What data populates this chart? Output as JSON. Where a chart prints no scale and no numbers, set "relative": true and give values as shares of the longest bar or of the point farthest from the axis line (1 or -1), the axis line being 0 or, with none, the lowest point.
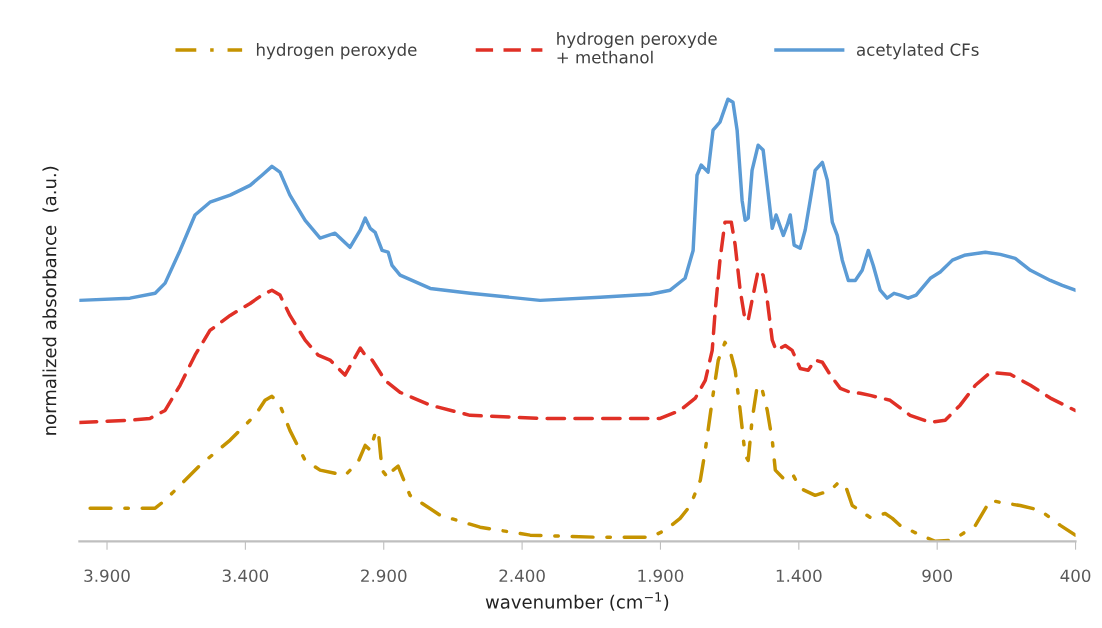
{
  "chart_data": {
    "type": "line",
    "relative": true,
    "xlabel": "wavenumber (cm$^{−1}$)",
    "ylabel": "normalized absorbance  (a.u.)",
    "xlim": [
      4000,
      400
    ],
    "xticks": [
      {
        "value": 3900,
        "label": "3.900"
      },
      {
        "value": 3400,
        "label": "3.400"
      },
      {
        "value": 2900,
        "label": "2.900"
      },
      {
        "value": 2400,
        "label": "2.400"
      },
      {
        "value": 1900,
        "label": "1.900"
      },
      {
        "value": 1400,
        "label": "1.400"
      },
      {
        "value": 900,
        "label": "900"
      },
      {
        "value": 400,
        "label": "400"
      }
    ],
    "tick_labels": "x",
    "grid": false,
    "legend": "top",
    "series": [
      {
        "name": "hydrogen peroxyde",
        "color": "#c59300",
        "line_style": "dashdot",
        "x": [
          3961,
          3817,
          3726,
          3690,
          3618,
          3564,
          3455,
          3365,
          3329,
          3304,
          3275,
          3239,
          3184,
          3130,
          3040,
          2993,
          2967,
          2949,
          2931,
          2920,
          2906,
          2884,
          2866,
          2848,
          2805,
          2696,
          2552,
          2371,
          2118,
          1937,
          1883,
          1829,
          1792,
          1756,
          1738,
          1713,
          1691,
          1667,
          1649,
          1630,
          1612,
          1594,
          1583,
          1569,
          1550,
          1532,
          1514,
          1496,
          1485,
          1449,
          1420,
          1395,
          1341,
          1286,
          1257,
          1232,
          1207,
          1142,
          1088,
          1062,
          1034,
          961,
          907,
          853,
          816,
          762,
          708,
          672,
          600,
          527,
          455,
          401
        ],
        "values": [
          0.075,
          0.075,
          0.075,
          0.093,
          0.138,
          0.172,
          0.229,
          0.285,
          0.319,
          0.328,
          0.308,
          0.251,
          0.183,
          0.161,
          0.149,
          0.179,
          0.217,
          0.206,
          0.244,
          0.251,
          0.161,
          0.143,
          0.161,
          0.17,
          0.104,
          0.059,
          0.032,
          0.014,
          0.009,
          0.009,
          0.025,
          0.052,
          0.081,
          0.138,
          0.206,
          0.319,
          0.41,
          0.45,
          0.432,
          0.387,
          0.296,
          0.195,
          0.183,
          0.274,
          0.353,
          0.342,
          0.296,
          0.229,
          0.161,
          0.138,
          0.149,
          0.12,
          0.104,
          0.115,
          0.133,
          0.127,
          0.081,
          0.054,
          0.063,
          0.052,
          0.036,
          0.014,
          0.0,
          0.002,
          0.014,
          0.036,
          0.093,
          0.088,
          0.081,
          0.07,
          0.036,
          0.014
        ]
      },
      {
        "name": "hydrogen peroxyde\n+ methanol",
        "color": "#e03026",
        "line_style": "dashed",
        "x": [
          4000,
          3817,
          3745,
          3690,
          3636,
          3582,
          3528,
          3455,
          3383,
          3340,
          3304,
          3275,
          3239,
          3184,
          3137,
          3094,
          3040,
          2985,
          2967,
          2942,
          2895,
          2841,
          2732,
          2588,
          2335,
          2118,
          1901,
          1829,
          1774,
          1738,
          1713,
          1702,
          1685,
          1667,
          1644,
          1630,
          1612,
          1594,
          1583,
          1569,
          1547,
          1529,
          1514,
          1496,
          1482,
          1449,
          1424,
          1395,
          1366,
          1341,
          1315,
          1286,
          1250,
          1214,
          1178,
          1142,
          1070,
          998,
          925,
          871,
          817,
          762,
          708,
          636,
          563,
          491,
          401
        ],
        "values": [
          0.269,
          0.274,
          0.278,
          0.296,
          0.353,
          0.421,
          0.477,
          0.511,
          0.538,
          0.557,
          0.568,
          0.557,
          0.511,
          0.455,
          0.421,
          0.41,
          0.376,
          0.437,
          0.421,
          0.41,
          0.364,
          0.337,
          0.308,
          0.285,
          0.278,
          0.278,
          0.278,
          0.296,
          0.324,
          0.364,
          0.432,
          0.523,
          0.636,
          0.722,
          0.722,
          0.67,
          0.568,
          0.5,
          0.5,
          0.545,
          0.613,
          0.602,
          0.545,
          0.455,
          0.432,
          0.443,
          0.432,
          0.391,
          0.387,
          0.41,
          0.405,
          0.376,
          0.346,
          0.337,
          0.335,
          0.33,
          0.319,
          0.285,
          0.269,
          0.274,
          0.308,
          0.353,
          0.382,
          0.378,
          0.353,
          0.324,
          0.296
        ]
      },
      {
        "name": "acetylated CFs",
        "color": "#5b9bd5",
        "line_style": "solid",
        "x": [
          4000,
          3817,
          3726,
          3690,
          3636,
          3582,
          3528,
          3455,
          3383,
          3340,
          3304,
          3275,
          3239,
          3184,
          3130,
          3076,
          3022,
          2985,
          2967,
          2949,
          2931,
          2906,
          2884,
          2870,
          2841,
          2732,
          2588,
          2335,
          2118,
          1937,
          1865,
          1811,
          1782,
          1768,
          1753,
          1728,
          1710,
          1685,
          1656,
          1638,
          1623,
          1605,
          1594,
          1583,
          1569,
          1547,
          1529,
          1514,
          1496,
          1482,
          1456,
          1442,
          1431,
          1417,
          1395,
          1377,
          1359,
          1341,
          1315,
          1297,
          1279,
          1261,
          1243,
          1221,
          1196,
          1171,
          1149,
          1131,
          1106,
          1081,
          1056,
          1034,
          1005,
          976,
          925,
          889,
          845,
          802,
          726,
          672,
          618,
          563,
          491,
          448,
          400
        ],
        "values": [
          0.545,
          0.55,
          0.561,
          0.584,
          0.658,
          0.738,
          0.767,
          0.783,
          0.805,
          0.828,
          0.848,
          0.835,
          0.783,
          0.726,
          0.686,
          0.697,
          0.665,
          0.704,
          0.731,
          0.708,
          0.699,
          0.658,
          0.654,
          0.624,
          0.602,
          0.572,
          0.561,
          0.545,
          0.552,
          0.559,
          0.568,
          0.595,
          0.658,
          0.828,
          0.851,
          0.835,
          0.93,
          0.948,
          1.0,
          0.993,
          0.93,
          0.771,
          0.726,
          0.731,
          0.839,
          0.896,
          0.885,
          0.805,
          0.708,
          0.738,
          0.692,
          0.715,
          0.738,
          0.67,
          0.663,
          0.704,
          0.771,
          0.839,
          0.857,
          0.817,
          0.722,
          0.692,
          0.636,
          0.59,
          0.59,
          0.613,
          0.658,
          0.624,
          0.568,
          0.55,
          0.561,
          0.557,
          0.55,
          0.557,
          0.595,
          0.609,
          0.636,
          0.647,
          0.654,
          0.649,
          0.64,
          0.613,
          0.59,
          0.579,
          0.568
        ]
      }
    ]
  }
}
